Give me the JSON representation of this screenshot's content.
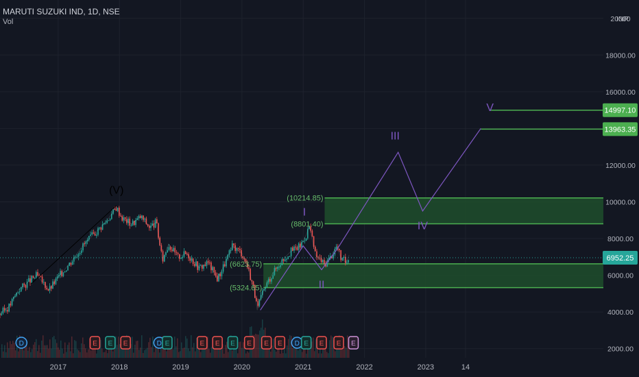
{
  "header": {
    "symbol_line": "MARUTI SUZUKI IND, 1D, NSE",
    "indicator": "Vol"
  },
  "colors": {
    "background": "#131722",
    "up": "#26a69a",
    "down": "#ef5350",
    "level_line": "#4caf50",
    "zone_fill": "#1f4d2b",
    "wave": "#7e57c2",
    "grid": "#1e222d"
  },
  "chart_data": {
    "type": "line",
    "title": "MARUTI SUZUKI IND, 1D, NSE",
    "price_axis": {
      "unit_label": "INR",
      "ticks": [
        "20000.00",
        "18000.00",
        "16000.00",
        "14000.00",
        "12000.00",
        "10000.00",
        "8000.00",
        "6000.00",
        "4000.00",
        "2000.00"
      ],
      "tick_values": [
        20000,
        18000,
        16000,
        14000,
        12000,
        10000,
        8000,
        6000,
        4000,
        2000
      ],
      "ylim": [
        1500,
        21000
      ]
    },
    "time_axis": {
      "ticks": [
        "2017",
        "2018",
        "2019",
        "2020",
        "2021",
        "2022",
        "2023",
        "14"
      ],
      "xlim": [
        2016.05,
        2025.9
      ]
    },
    "price_series": {
      "name": "",
      "x": [
        2016.05,
        2016.2,
        2016.35,
        2016.5,
        2016.65,
        2016.85,
        2017.0,
        2017.2,
        2017.4,
        2017.6,
        2017.8,
        2017.95,
        2018.05,
        2018.2,
        2018.35,
        2018.5,
        2018.6,
        2018.7,
        2018.8,
        2018.95,
        2019.1,
        2019.3,
        2019.45,
        2019.6,
        2019.7,
        2019.85,
        2020.0,
        2020.1,
        2020.2,
        2020.25,
        2020.3,
        2020.4,
        2020.5,
        2020.65,
        2020.8,
        2020.95,
        2021.05,
        2021.1,
        2021.2,
        2021.35,
        2021.45,
        2021.55,
        2021.62,
        2021.7,
        2021.75
      ],
      "y": [
        3900,
        4300,
        5200,
        5600,
        6000,
        5200,
        5900,
        6700,
        7600,
        8300,
        9000,
        9700,
        9100,
        8800,
        9200,
        8600,
        8900,
        6800,
        7700,
        7000,
        7200,
        6400,
        6700,
        5800,
        6500,
        7600,
        7200,
        6400,
        5200,
        4100,
        4700,
        5500,
        6100,
        6800,
        7300,
        7600,
        8200,
        8700,
        7100,
        6600,
        7000,
        7600,
        6900,
        6700,
        7100
      ]
    },
    "last_price": "6952.25",
    "last_price_value": 6952.25,
    "levels": [
      {
        "label": "14997.10",
        "value": 14997.1,
        "tag": "price-label"
      },
      {
        "label": "13963.35",
        "value": 13963.35,
        "tag": "price-label"
      },
      {
        "label": "(10214.85)",
        "value": 10214.85,
        "tag": "zone-label"
      },
      {
        "label": "(8801.40)",
        "value": 8801.4,
        "tag": "zone-label"
      },
      {
        "label": "(6623.75)",
        "value": 6623.75,
        "tag": "zone-label"
      },
      {
        "label": "(5324.65)",
        "value": 5324.65,
        "tag": "zone-label"
      }
    ],
    "zones": [
      {
        "from": 8801.4,
        "to": 10214.85,
        "x_start": 2021.35,
        "x_end": 2025.9
      },
      {
        "from": 5324.65,
        "to": 6623.75,
        "x_start": 2020.35,
        "x_end": 2025.9
      }
    ],
    "wave_path": {
      "x": [
        2020.3,
        2021.0,
        2021.3,
        2021.55,
        2022.55,
        2022.95,
        2023.9
      ],
      "y": [
        4100,
        7600,
        6300,
        7400,
        12700,
        9500,
        14000
      ]
    },
    "wave_labels": [
      {
        "text": "(V)",
        "x": 2017.95,
        "y": 10450,
        "color": "#000000"
      },
      {
        "text": "I",
        "x": 2021.02,
        "y": 9250,
        "color": "#7e57c2"
      },
      {
        "text": "II",
        "x": 2021.3,
        "y": 5300,
        "color": "#7e57c2"
      },
      {
        "text": "III",
        "x": 2022.5,
        "y": 13400,
        "color": "#7e57c2"
      },
      {
        "text": "IV",
        "x": 2022.95,
        "y": 8500,
        "color": "#7e57c2"
      },
      {
        "text": "V",
        "x": 2024.05,
        "y": 14950,
        "color": "#7e57c2"
      }
    ],
    "fifth_wave_line": {
      "x": [
        2016.55,
        2017.95
      ],
      "y": [
        5500,
        9800
      ]
    },
    "events": [
      {
        "label": "D",
        "x": 2016.4,
        "kind": "dividend"
      },
      {
        "label": "E",
        "x": 2017.6,
        "kind": "earnings-down"
      },
      {
        "label": "E",
        "x": 2017.85,
        "kind": "earnings-up"
      },
      {
        "label": "E",
        "x": 2018.1,
        "kind": "earnings-down"
      },
      {
        "label": "D",
        "x": 2018.65,
        "kind": "dividend"
      },
      {
        "label": "E",
        "x": 2018.78,
        "kind": "earnings-up"
      },
      {
        "label": "E",
        "x": 2019.35,
        "kind": "earnings-down"
      },
      {
        "label": "E",
        "x": 2019.6,
        "kind": "earnings-down"
      },
      {
        "label": "E",
        "x": 2019.85,
        "kind": "earnings-up"
      },
      {
        "label": "E",
        "x": 2020.12,
        "kind": "earnings-down"
      },
      {
        "label": "E",
        "x": 2020.4,
        "kind": "earnings-down"
      },
      {
        "label": "E",
        "x": 2020.62,
        "kind": "earnings-down"
      },
      {
        "label": "D",
        "x": 2020.9,
        "kind": "dividend"
      },
      {
        "label": "E",
        "x": 2021.05,
        "kind": "earnings-up"
      },
      {
        "label": "E",
        "x": 2021.3,
        "kind": "earnings-down"
      },
      {
        "label": "E",
        "x": 2021.58,
        "kind": "earnings-down"
      },
      {
        "label": "E",
        "x": 2021.82,
        "kind": "earnings-future"
      }
    ]
  }
}
